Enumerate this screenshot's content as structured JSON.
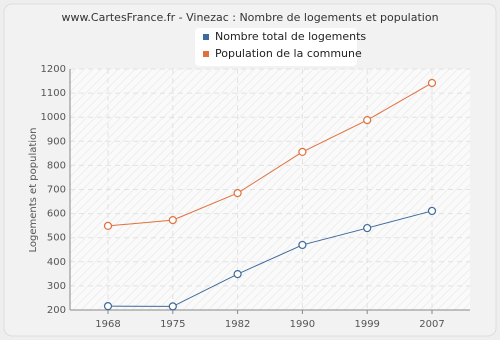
{
  "chart_data": {
    "type": "line",
    "title": "www.CartesFrance.fr - Vinezac : Nombre de logements et population",
    "y_label": "Logements et population",
    "categories": [
      "1968",
      "1975",
      "1982",
      "1990",
      "1999",
      "2007"
    ],
    "series": [
      {
        "name": "Nombre total de logements",
        "color": "#3d6a9a",
        "values": [
          216,
          215,
          349,
          470,
          540,
          611
        ]
      },
      {
        "name": "Population de la commune",
        "color": "#e0703c",
        "values": [
          549,
          573,
          685,
          856,
          988,
          1142
        ]
      }
    ],
    "ylim": [
      200,
      1200
    ],
    "yticks": [
      200,
      300,
      400,
      500,
      600,
      700,
      800,
      900,
      1000,
      1100,
      1200
    ],
    "grid": true
  }
}
